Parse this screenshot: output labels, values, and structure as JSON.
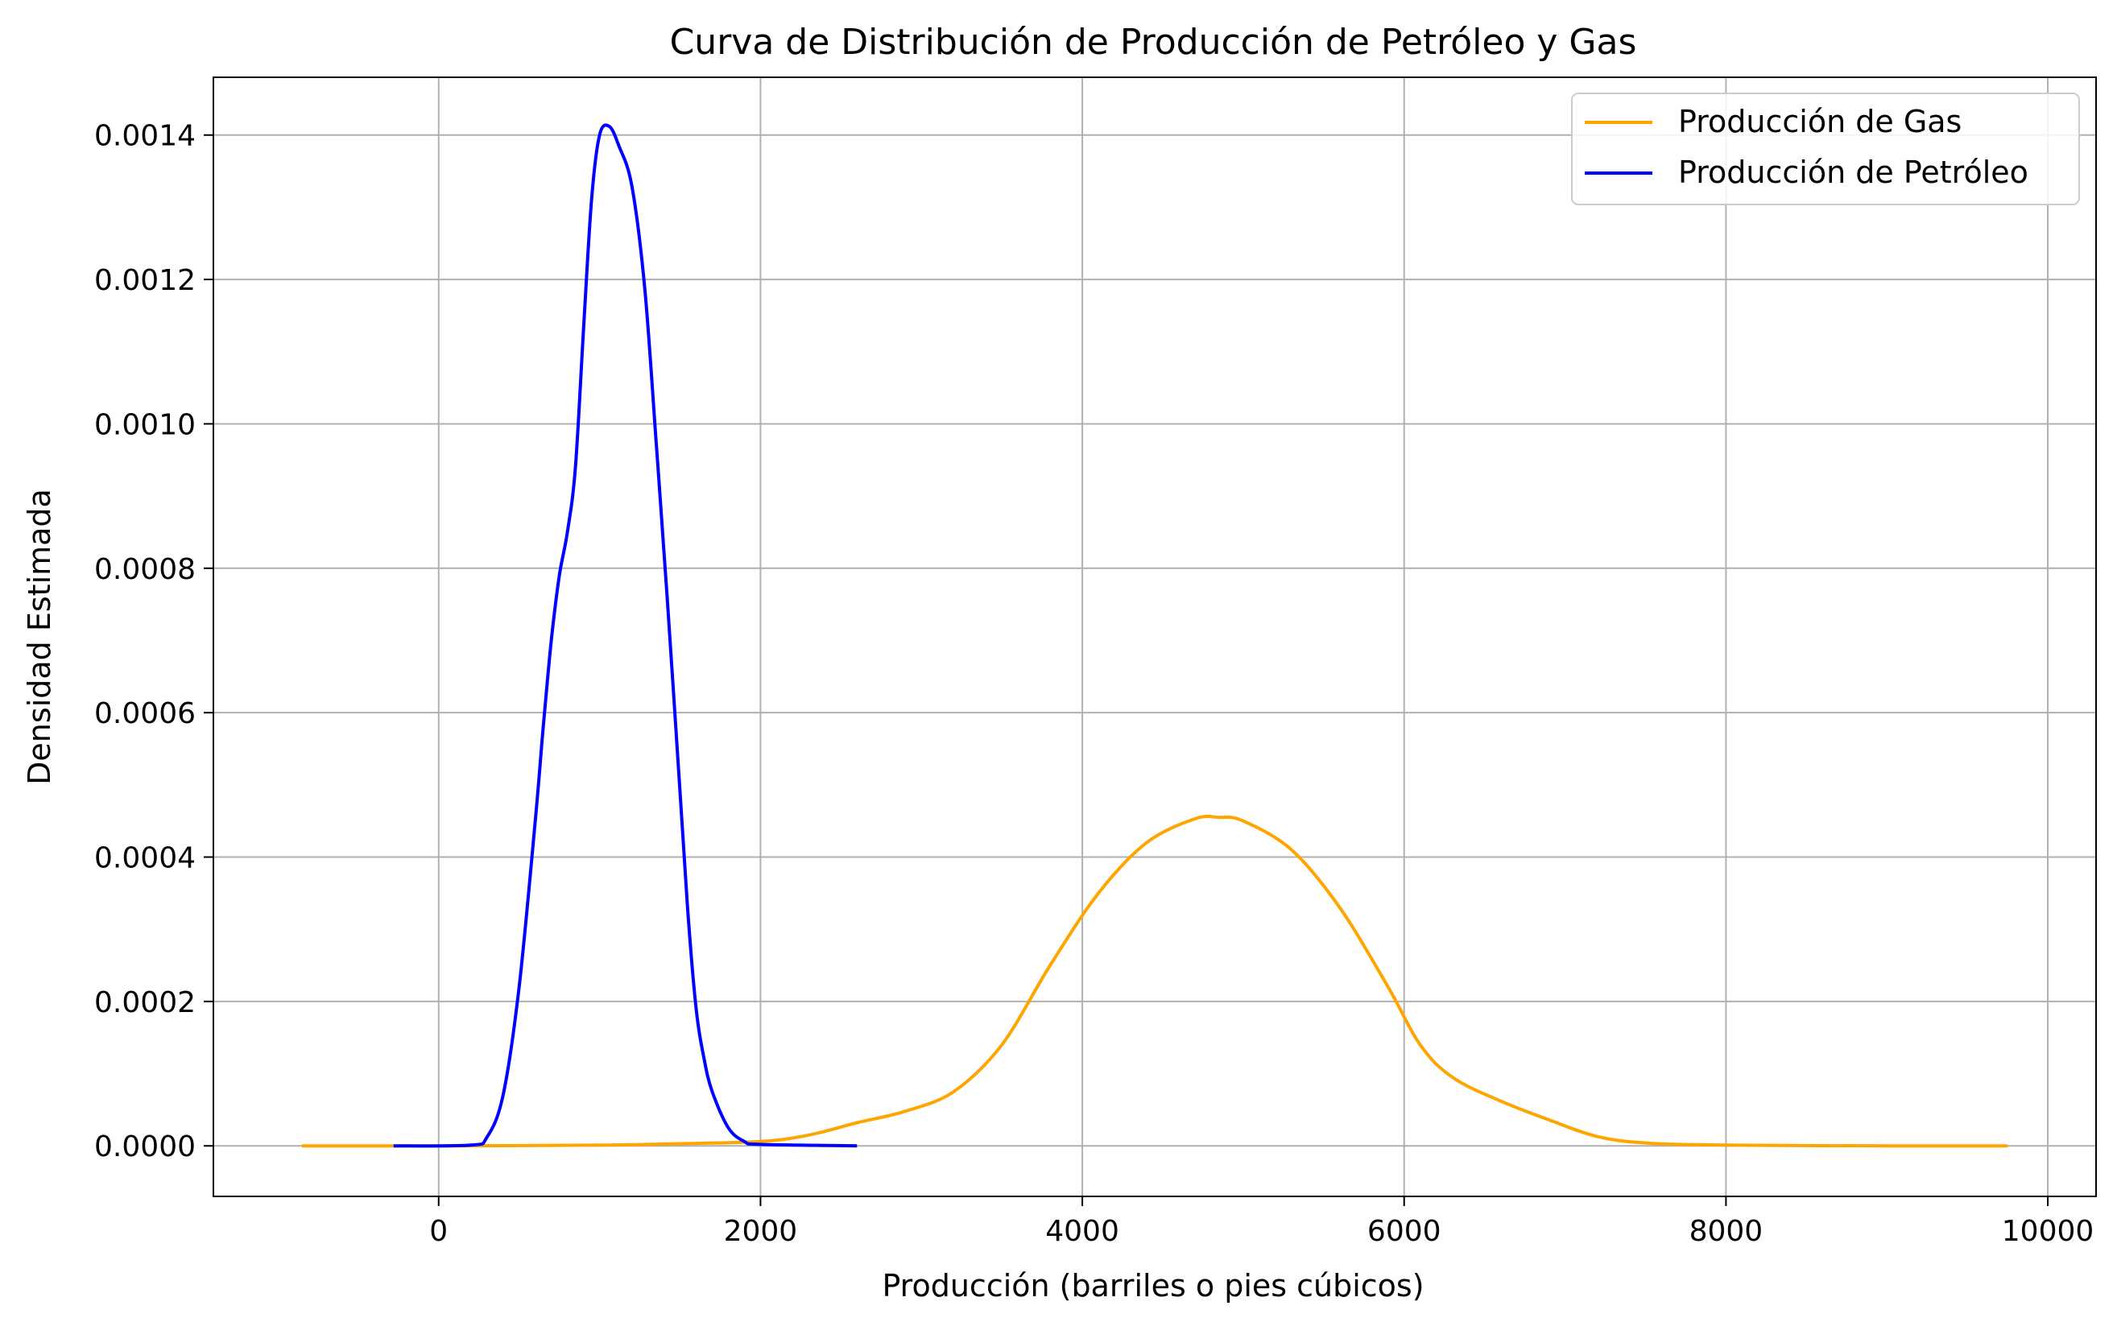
{
  "chart_data": {
    "type": "line",
    "title": "Curva de Distribución de Producción de Petróleo y Gas",
    "xlabel": "Producción (barriles o pies cúbicos)",
    "ylabel": "Densidad Estimada",
    "xlim": [
      -1400,
      10300
    ],
    "ylim": [
      -7e-05,
      0.00148
    ],
    "x_ticks": [
      0,
      2000,
      4000,
      6000,
      8000,
      10000
    ],
    "x_tick_labels": [
      "0",
      "2000",
      "4000",
      "6000",
      "8000",
      "10000"
    ],
    "y_ticks": [
      0.0,
      0.0002,
      0.0004,
      0.0006,
      0.0008,
      0.001,
      0.0012,
      0.0014
    ],
    "y_tick_labels": [
      "0.0000",
      "0.0002",
      "0.0004",
      "0.0006",
      "0.0008",
      "0.0010",
      "0.0012",
      "0.0014"
    ],
    "grid": true,
    "legend_position": "top-right",
    "series": [
      {
        "name": "Producción de Gas",
        "color": "#ffa500",
        "x": [
          -850,
          0,
          1000,
          1500,
          2000,
          2300,
          2600,
          2900,
          3200,
          3500,
          3800,
          4100,
          4400,
          4700,
          4850,
          5000,
          5300,
          5600,
          5900,
          6100,
          6300,
          6600,
          6900,
          7200,
          7500,
          8000,
          9000,
          9750
        ],
        "y": [
          0.0,
          0.0,
          1e-06,
          3e-06,
          6e-06,
          1.5e-05,
          3.2e-05,
          4.8e-05,
          7.5e-05,
          0.00014,
          0.00025,
          0.00035,
          0.00042,
          0.000453,
          0.000455,
          0.00045,
          0.00041,
          0.00033,
          0.00022,
          0.00014,
          9.5e-05,
          6.2e-05,
          3.6e-05,
          1.3e-05,
          4e-06,
          1e-06,
          0.0,
          0.0
        ]
      },
      {
        "name": "Producción de Petróleo",
        "color": "#0000ff",
        "x": [
          -280,
          200,
          300,
          400,
          500,
          600,
          650,
          700,
          750,
          800,
          850,
          900,
          950,
          1000,
          1060,
          1120,
          1200,
          1280,
          1350,
          1420,
          1500,
          1550,
          1600,
          1650,
          1700,
          1800,
          1900,
          2000,
          2600
        ],
        "y": [
          0.0,
          1e-06,
          1.2e-05,
          7e-05,
          0.00022,
          0.00045,
          0.00058,
          0.0007,
          0.00079,
          0.00085,
          0.00094,
          0.00113,
          0.00131,
          0.0014,
          0.001412,
          0.001385,
          0.00133,
          0.00119,
          0.00098,
          0.00076,
          0.00049,
          0.00032,
          0.00019,
          0.00012,
          7.5e-05,
          2.5e-05,
          6e-06,
          2e-06,
          0.0
        ]
      }
    ]
  }
}
